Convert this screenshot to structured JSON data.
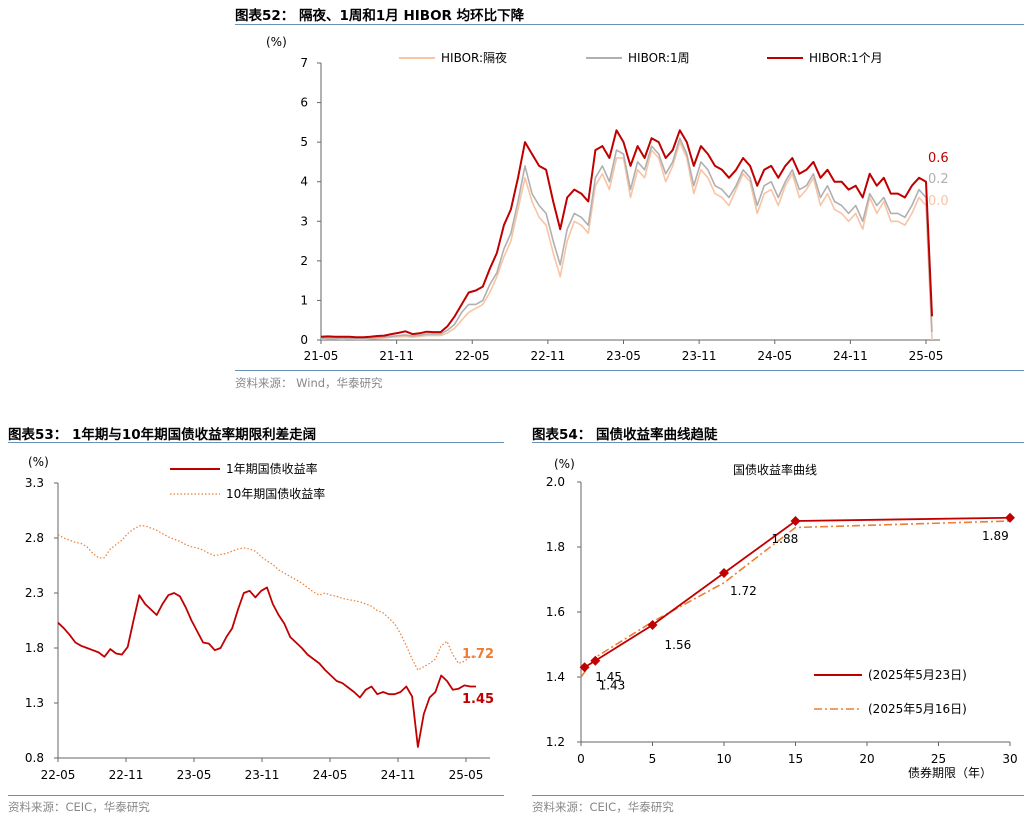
{
  "charts": {
    "c52": {
      "title": "图表52：  隔夜、1周和1月 HIBOR 均环比下降",
      "source": "资料来源：  Wind，华泰研究",
      "unit": "(%)",
      "legend": [
        "HIBOR:隔夜",
        "HIBOR:1周",
        "HIBOR:1个月"
      ],
      "end_labels": [
        "0.6",
        "0.2",
        "0.0"
      ]
    },
    "c53": {
      "title": "图表53：  1年期与10年期国债收益率期限利差走阔",
      "source": "资料来源：CEIC，华泰研究",
      "unit": "(%)",
      "legend": [
        "1年期国债收益率",
        "10年期国债收益率"
      ],
      "end_labels": [
        "1.72",
        "1.45"
      ]
    },
    "c54": {
      "title": "图表54：  国债收益率曲线趋陡",
      "source": "资料来源：CEIC，华泰研究",
      "unit": "(%)",
      "inner_title": "国债收益率曲线",
      "legend": [
        "(2025年5月23日)",
        "(2025年5月16日)"
      ],
      "xlabel": "债券期限（年）"
    }
  },
  "colors": {
    "dark_red": "#c00000",
    "gray": "#b0b0b0",
    "peach": "#f8c4a4",
    "orange": "#ee7d31",
    "rule": "#6a90b8"
  },
  "chart_data": [
    {
      "type": "line",
      "title": "隔夜、1周和1月 HIBOR 均环比下降",
      "ylabel": "(%)",
      "ylim": [
        0,
        7
      ],
      "yticks": [
        "0",
        "1",
        "2",
        "3",
        "4",
        "5",
        "6",
        "7"
      ],
      "x_ticks": [
        "21-05",
        "21-11",
        "22-05",
        "22-11",
        "23-05",
        "23-11",
        "24-05",
        "24-11",
        "25-05"
      ],
      "legend_position": "top",
      "series": [
        {
          "name": "HIBOR:1个月",
          "color": "#c00000",
          "values": [
            0.08,
            0.09,
            0.08,
            0.08,
            0.08,
            0.07,
            0.07,
            0.08,
            0.1,
            0.11,
            0.15,
            0.18,
            0.22,
            0.15,
            0.17,
            0.21,
            0.2,
            0.2,
            0.35,
            0.6,
            0.9,
            1.2,
            1.25,
            1.35,
            1.8,
            2.2,
            2.9,
            3.3,
            4.1,
            5.0,
            4.7,
            4.4,
            4.3,
            3.5,
            2.8,
            3.6,
            3.8,
            3.7,
            3.5,
            4.8,
            4.9,
            4.6,
            5.3,
            5.0,
            4.4,
            4.9,
            4.6,
            5.1,
            5.0,
            4.6,
            4.8,
            5.3,
            5.0,
            4.4,
            4.9,
            4.7,
            4.4,
            4.3,
            4.1,
            4.3,
            4.6,
            4.4,
            3.9,
            4.3,
            4.4,
            4.1,
            4.4,
            4.6,
            4.2,
            4.3,
            4.5,
            4.1,
            4.3,
            4.0,
            4.0,
            3.8,
            3.9,
            3.6,
            4.2,
            3.9,
            4.1,
            3.7,
            3.7,
            3.6,
            3.9,
            4.1,
            4.0,
            0.6
          ]
        },
        {
          "name": "HIBOR:1周",
          "color": "#b0b0b0",
          "values": [
            0.04,
            0.05,
            0.05,
            0.04,
            0.05,
            0.04,
            0.04,
            0.05,
            0.06,
            0.07,
            0.09,
            0.11,
            0.13,
            0.1,
            0.12,
            0.15,
            0.15,
            0.15,
            0.25,
            0.4,
            0.7,
            0.9,
            0.9,
            1.0,
            1.4,
            1.7,
            2.3,
            2.7,
            3.5,
            4.4,
            3.7,
            3.4,
            3.2,
            2.5,
            1.9,
            2.8,
            3.2,
            3.1,
            2.9,
            4.1,
            4.4,
            4.0,
            4.8,
            4.7,
            3.8,
            4.5,
            4.3,
            4.9,
            4.7,
            4.2,
            4.5,
            5.1,
            4.7,
            3.9,
            4.5,
            4.3,
            3.9,
            3.8,
            3.6,
            3.9,
            4.3,
            4.1,
            3.4,
            3.9,
            4.0,
            3.6,
            4.0,
            4.3,
            3.8,
            3.9,
            4.2,
            3.6,
            3.9,
            3.5,
            3.4,
            3.2,
            3.4,
            3.0,
            3.7,
            3.4,
            3.6,
            3.2,
            3.2,
            3.1,
            3.4,
            3.8,
            3.6,
            0.2
          ]
        },
        {
          "name": "HIBOR:隔夜",
          "color": "#f8c4a4",
          "values": [
            0.02,
            0.03,
            0.03,
            0.02,
            0.03,
            0.02,
            0.02,
            0.03,
            0.04,
            0.05,
            0.07,
            0.08,
            0.09,
            0.07,
            0.09,
            0.11,
            0.11,
            0.11,
            0.18,
            0.3,
            0.5,
            0.7,
            0.8,
            0.9,
            1.2,
            1.6,
            2.1,
            2.5,
            3.3,
            4.1,
            3.5,
            3.1,
            2.9,
            2.2,
            1.6,
            2.5,
            3.0,
            2.9,
            2.7,
            3.9,
            4.2,
            3.8,
            4.6,
            4.6,
            3.6,
            4.3,
            4.1,
            4.8,
            4.6,
            4.0,
            4.4,
            5.0,
            4.6,
            3.7,
            4.3,
            4.1,
            3.7,
            3.6,
            3.4,
            3.8,
            4.2,
            4.0,
            3.2,
            3.7,
            3.8,
            3.4,
            3.9,
            4.2,
            3.6,
            3.8,
            4.1,
            3.4,
            3.7,
            3.3,
            3.2,
            3.0,
            3.2,
            2.8,
            3.6,
            3.2,
            3.5,
            3.0,
            3.0,
            2.9,
            3.2,
            3.6,
            3.4,
            0.0
          ]
        }
      ]
    },
    {
      "type": "line",
      "title": "1年期与10年期国债收益率期限利差走阔",
      "ylabel": "(%)",
      "ylim": [
        0.8,
        3.3
      ],
      "yticks": [
        "0.8",
        "1.3",
        "1.8",
        "2.3",
        "2.8",
        "3.3"
      ],
      "x_ticks": [
        "22-05",
        "22-11",
        "23-05",
        "23-11",
        "24-05",
        "24-11",
        "25-05"
      ],
      "legend_position": "top",
      "series": [
        {
          "name": "1年期国债收益率",
          "color": "#c00000",
          "values": [
            2.03,
            1.98,
            1.92,
            1.85,
            1.82,
            1.8,
            1.78,
            1.76,
            1.72,
            1.79,
            1.75,
            1.74,
            1.81,
            2.05,
            2.28,
            2.2,
            2.15,
            2.1,
            2.2,
            2.28,
            2.3,
            2.27,
            2.17,
            2.05,
            1.95,
            1.85,
            1.84,
            1.78,
            1.8,
            1.9,
            1.98,
            2.15,
            2.3,
            2.32,
            2.26,
            2.32,
            2.35,
            2.2,
            2.1,
            2.02,
            1.9,
            1.85,
            1.8,
            1.74,
            1.7,
            1.66,
            1.6,
            1.55,
            1.5,
            1.48,
            1.44,
            1.4,
            1.35,
            1.42,
            1.45,
            1.38,
            1.4,
            1.38,
            1.38,
            1.4,
            1.45,
            1.36,
            0.9,
            1.2,
            1.35,
            1.4,
            1.55,
            1.5,
            1.42,
            1.43,
            1.46,
            1.45,
            1.45
          ]
        },
        {
          "name": "10年期国债收益率",
          "color": "#ee7d31",
          "values": [
            2.83,
            2.8,
            2.78,
            2.76,
            2.75,
            2.72,
            2.66,
            2.62,
            2.62,
            2.7,
            2.74,
            2.78,
            2.84,
            2.88,
            2.91,
            2.91,
            2.89,
            2.87,
            2.84,
            2.81,
            2.79,
            2.77,
            2.74,
            2.72,
            2.71,
            2.69,
            2.66,
            2.64,
            2.65,
            2.66,
            2.68,
            2.7,
            2.71,
            2.7,
            2.68,
            2.63,
            2.59,
            2.56,
            2.51,
            2.48,
            2.45,
            2.42,
            2.39,
            2.35,
            2.31,
            2.28,
            2.3,
            2.28,
            2.27,
            2.25,
            2.24,
            2.23,
            2.22,
            2.2,
            2.18,
            2.14,
            2.12,
            2.07,
            2.02,
            1.93,
            1.82,
            1.7,
            1.6,
            1.63,
            1.66,
            1.7,
            1.82,
            1.86,
            1.74,
            1.66,
            1.68,
            1.72,
            1.72
          ]
        }
      ]
    },
    {
      "type": "line",
      "title": "国债收益率曲线",
      "ylabel": "(%)",
      "xlabel": "债券期限（年）",
      "xlim": [
        0,
        30
      ],
      "ylim": [
        1.2,
        2.0
      ],
      "xticks": [
        "0",
        "5",
        "10",
        "15",
        "20",
        "25",
        "30"
      ],
      "yticks": [
        "1.2",
        "1.4",
        "1.6",
        "1.8",
        "2.0"
      ],
      "legend_position": "bottom-right",
      "series": [
        {
          "name": "(2025年5月23日)",
          "color": "#c00000",
          "style": "solid",
          "x": [
            0.25,
            1,
            5,
            10,
            15,
            30
          ],
          "values": [
            1.43,
            1.45,
            1.56,
            1.72,
            1.88,
            1.89
          ],
          "point_labels": [
            "1.43",
            "1.45",
            "1.56",
            "1.72",
            "1.88",
            "1.89"
          ]
        },
        {
          "name": "(2025年5月16日)",
          "color": "#ee7d31",
          "style": "dashdot",
          "x": [
            0,
            1,
            5,
            10,
            15,
            30
          ],
          "values": [
            1.4,
            1.46,
            1.57,
            1.69,
            1.86,
            1.88
          ]
        }
      ]
    }
  ]
}
